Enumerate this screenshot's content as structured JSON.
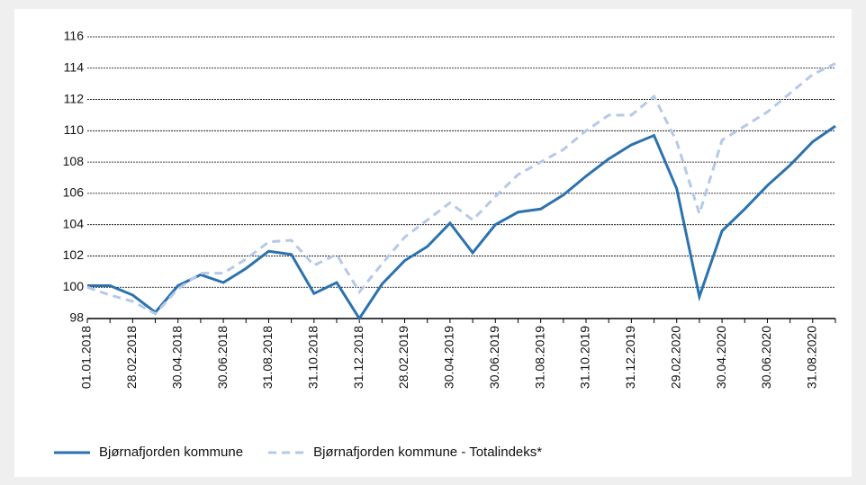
{
  "chart_data": {
    "type": "line",
    "categories": [
      "01.01.2018",
      null,
      "28.02.2018",
      null,
      "30.04.2018",
      null,
      "30.06.2018",
      null,
      "31.08.2018",
      null,
      "31.10.2018",
      null,
      "31.12.2018",
      null,
      "28.02.2019",
      null,
      "30.04.2019",
      null,
      "30.06.2019",
      null,
      "31.08.2019",
      null,
      "31.10.2019",
      null,
      "31.12.2019",
      null,
      "29.02.2020",
      null,
      "30.04.2020",
      null,
      "30.06.2020",
      null,
      "31.08.2020",
      null
    ],
    "series": [
      {
        "name": "Bjørnafjorden kommune",
        "color": "#2b72ae",
        "dashed": false,
        "values": [
          100.1,
          100.1,
          99.5,
          98.4,
          100.1,
          100.8,
          100.3,
          101.2,
          102.3,
          102.1,
          99.6,
          100.3,
          98.0,
          100.2,
          101.7,
          102.6,
          104.1,
          102.2,
          104.0,
          104.8,
          105.0,
          105.9,
          107.1,
          108.2,
          109.1,
          109.7,
          106.3,
          99.4,
          103.6,
          105.0,
          106.5,
          107.8,
          109.3,
          110.3
        ]
      },
      {
        "name": "Bjørnafjorden kommune - Totalindeks*",
        "color": "#b5c9e8",
        "dashed": true,
        "values": [
          100.0,
          99.5,
          99.1,
          98.3,
          99.9,
          100.9,
          100.9,
          101.8,
          102.9,
          103.0,
          101.4,
          102.1,
          99.7,
          101.5,
          103.2,
          104.3,
          105.4,
          104.3,
          105.8,
          107.2,
          108.0,
          108.8,
          110.0,
          111.0,
          111.0,
          112.2,
          109.3,
          104.7,
          109.4,
          110.3,
          111.2,
          112.4,
          113.6,
          114.3
        ]
      }
    ],
    "ylim": [
      98,
      116
    ],
    "yticks": [
      98,
      100,
      102,
      104,
      106,
      108,
      110,
      112,
      114,
      116
    ],
    "grid": true
  }
}
